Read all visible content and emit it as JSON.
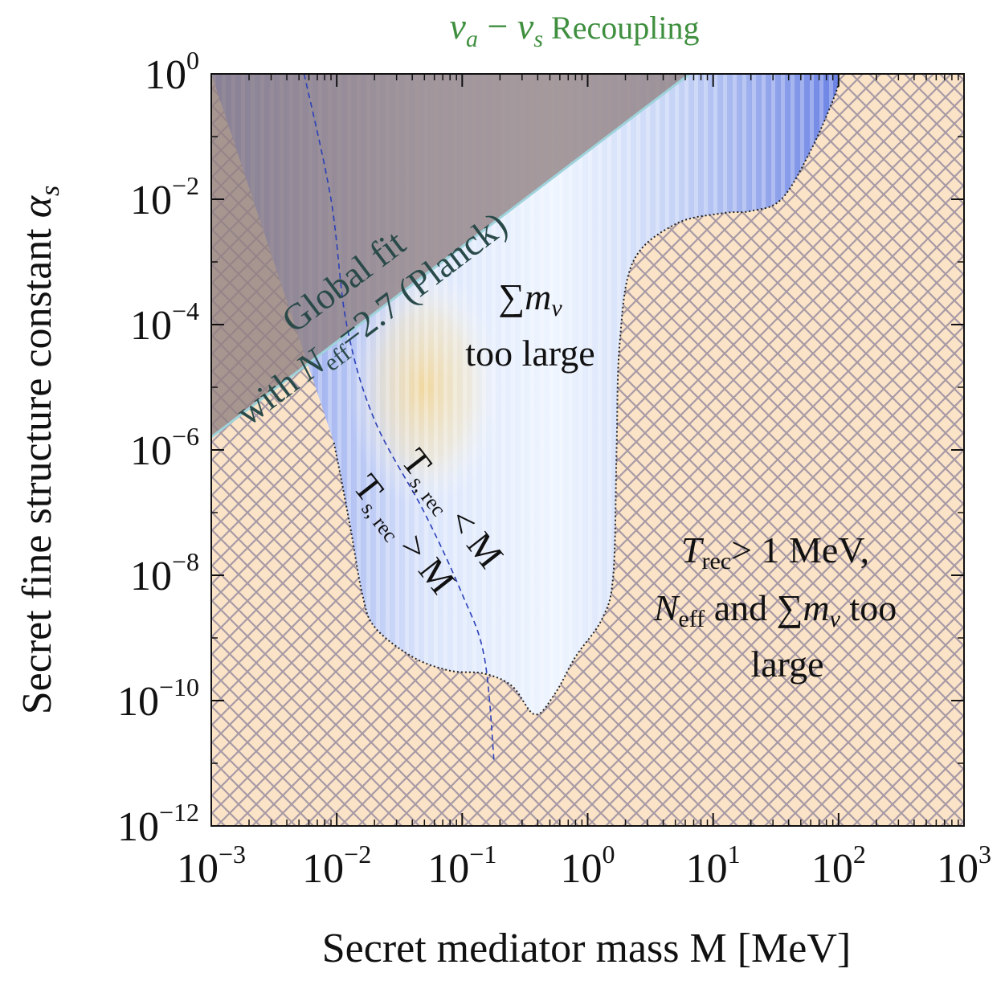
{
  "chart_data": {
    "type": "exclusion-plot",
    "title_sym_a": "ν",
    "title_sub_a": "a",
    "title_minus": "−",
    "title_sym_s": "ν",
    "title_sub_s": "s",
    "title_word": "Recoupling",
    "xlabel": "Secret mediator mass M [MeV]",
    "ylabel_text": "Secret fine structure constant ",
    "ylabel_sym": "α",
    "ylabel_sub": "s",
    "xscale": "log",
    "yscale": "log",
    "xlim": [
      0.001,
      1000
    ],
    "ylim": [
      1e-12,
      1
    ],
    "x_ticks": [
      {
        "value": 0.001,
        "base": "10",
        "exp": "−3"
      },
      {
        "value": 0.01,
        "base": "10",
        "exp": "−2"
      },
      {
        "value": 0.1,
        "base": "10",
        "exp": "−1"
      },
      {
        "value": 1,
        "base": "10",
        "exp": "0"
      },
      {
        "value": 10,
        "base": "10",
        "exp": "1"
      },
      {
        "value": 100,
        "base": "10",
        "exp": "2"
      },
      {
        "value": 1000,
        "base": "10",
        "exp": "3"
      }
    ],
    "y_ticks": [
      {
        "value": 1e-12,
        "base": "10",
        "exp": "−12"
      },
      {
        "value": 1e-10,
        "base": "10",
        "exp": "−10"
      },
      {
        "value": 1e-08,
        "base": "10",
        "exp": "−8"
      },
      {
        "value": 1e-06,
        "base": "10",
        "exp": "−6"
      },
      {
        "value": 0.0001,
        "base": "10",
        "exp": "−4"
      },
      {
        "value": 0.01,
        "base": "10",
        "exp": "−2"
      },
      {
        "value": 1,
        "base": "10",
        "exp": "0"
      }
    ],
    "regions": {
      "global_fit": {
        "line1": "Global fit",
        "line2_pre": "with ",
        "line2_sym": "N",
        "line2_sub": "eff",
        "line2_post": "=2.7 (Planck)",
        "boundary": [
          [
            0.001,
            1.6e-06
          ],
          [
            6.5,
            1
          ]
        ]
      },
      "sum_mnu": {
        "sym": "∑",
        "m": "m",
        "sub": "ν",
        "line2": "too large"
      },
      "excluded": {
        "line1_sym": "T",
        "line1_sub": "rec",
        "line1_post": "> 1 MeV,",
        "line2_sym": "N",
        "line2_sub": "eff",
        "line2_mid": " and ",
        "line2_sum": "∑",
        "line2_m": "m",
        "line2_msub": "ν",
        "line2_post": " too",
        "line3": "large"
      },
      "allowed_boundary": [
        [
          0.0095,
          1.3e-06
        ],
        [
          0.011,
          3e-07
        ],
        [
          0.013,
          5e-08
        ],
        [
          0.016,
          5e-09
        ],
        [
          0.02,
          1.5e-09
        ],
        [
          0.04,
          5e-10
        ],
        [
          0.08,
          3e-10
        ],
        [
          0.15,
          2.7e-10
        ],
        [
          0.25,
          1.7e-10
        ],
        [
          0.38,
          6e-11
        ],
        [
          0.55,
          1.3e-10
        ],
        [
          0.8,
          5e-10
        ],
        [
          1.3,
          2e-09
        ],
        [
          1.6,
          1e-08
        ],
        [
          1.7,
          1e-06
        ],
        [
          1.8,
          5e-05
        ],
        [
          2.3,
          0.001
        ],
        [
          5,
          0.004
        ],
        [
          12,
          0.006
        ],
        [
          20,
          0.0065
        ],
        [
          35,
          0.01
        ],
        [
          60,
          0.06
        ],
        [
          95,
          0.5
        ],
        [
          100,
          1
        ]
      ],
      "divider_curve": [
        [
          0.0055,
          1
        ],
        [
          0.009,
          0.01
        ],
        [
          0.012,
          0.0001
        ],
        [
          0.02,
          3e-06
        ],
        [
          0.05,
          1e-07
        ],
        [
          0.1,
          5e-09
        ],
        [
          0.15,
          5e-10
        ],
        [
          0.18,
          1e-11
        ]
      ],
      "label_right": {
        "T": "T",
        "sub": "s, rec",
        "rel": " < M"
      },
      "label_left": {
        "T": "T",
        "sub": "s, rec",
        "rel": " > M"
      }
    }
  }
}
